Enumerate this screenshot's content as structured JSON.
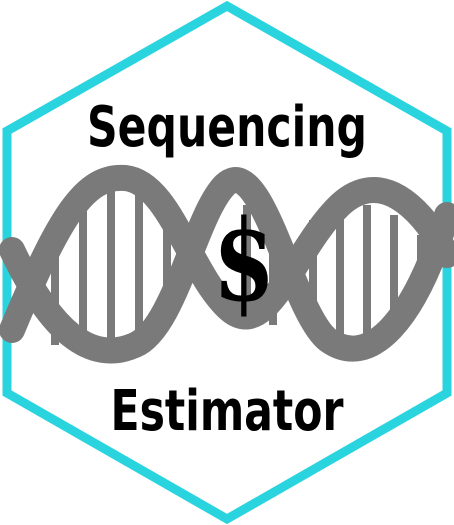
{
  "logo": {
    "title_top": "Sequencing",
    "title_bottom": "Estimator",
    "symbol": "$",
    "icon": "dna-double-helix-icon"
  },
  "colors": {
    "border": "#2ad4df",
    "helix": "#7a7a7a",
    "background": "#ffffff",
    "text": "#000000"
  }
}
